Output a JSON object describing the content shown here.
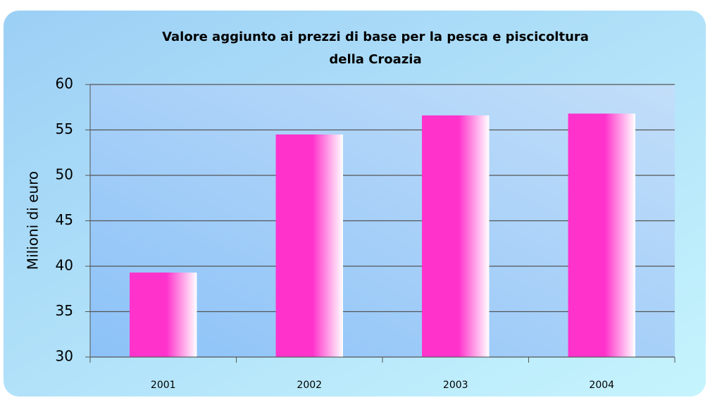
{
  "chart_data": {
    "type": "bar",
    "title": [
      "Valore aggiunto  ai prezzi di base per la pesca e piscicoltura",
      "della Croazia"
    ],
    "y_label": "Milioni di euro",
    "categories": [
      "2001",
      "2002",
      "2003",
      "2004"
    ],
    "values": [
      39.3,
      54.5,
      56.6,
      56.8
    ],
    "color": "#ff33cc",
    "ylim": [
      30,
      60
    ],
    "yticks": [
      30,
      35,
      40,
      45,
      50,
      55,
      60
    ],
    "grid": true
  }
}
